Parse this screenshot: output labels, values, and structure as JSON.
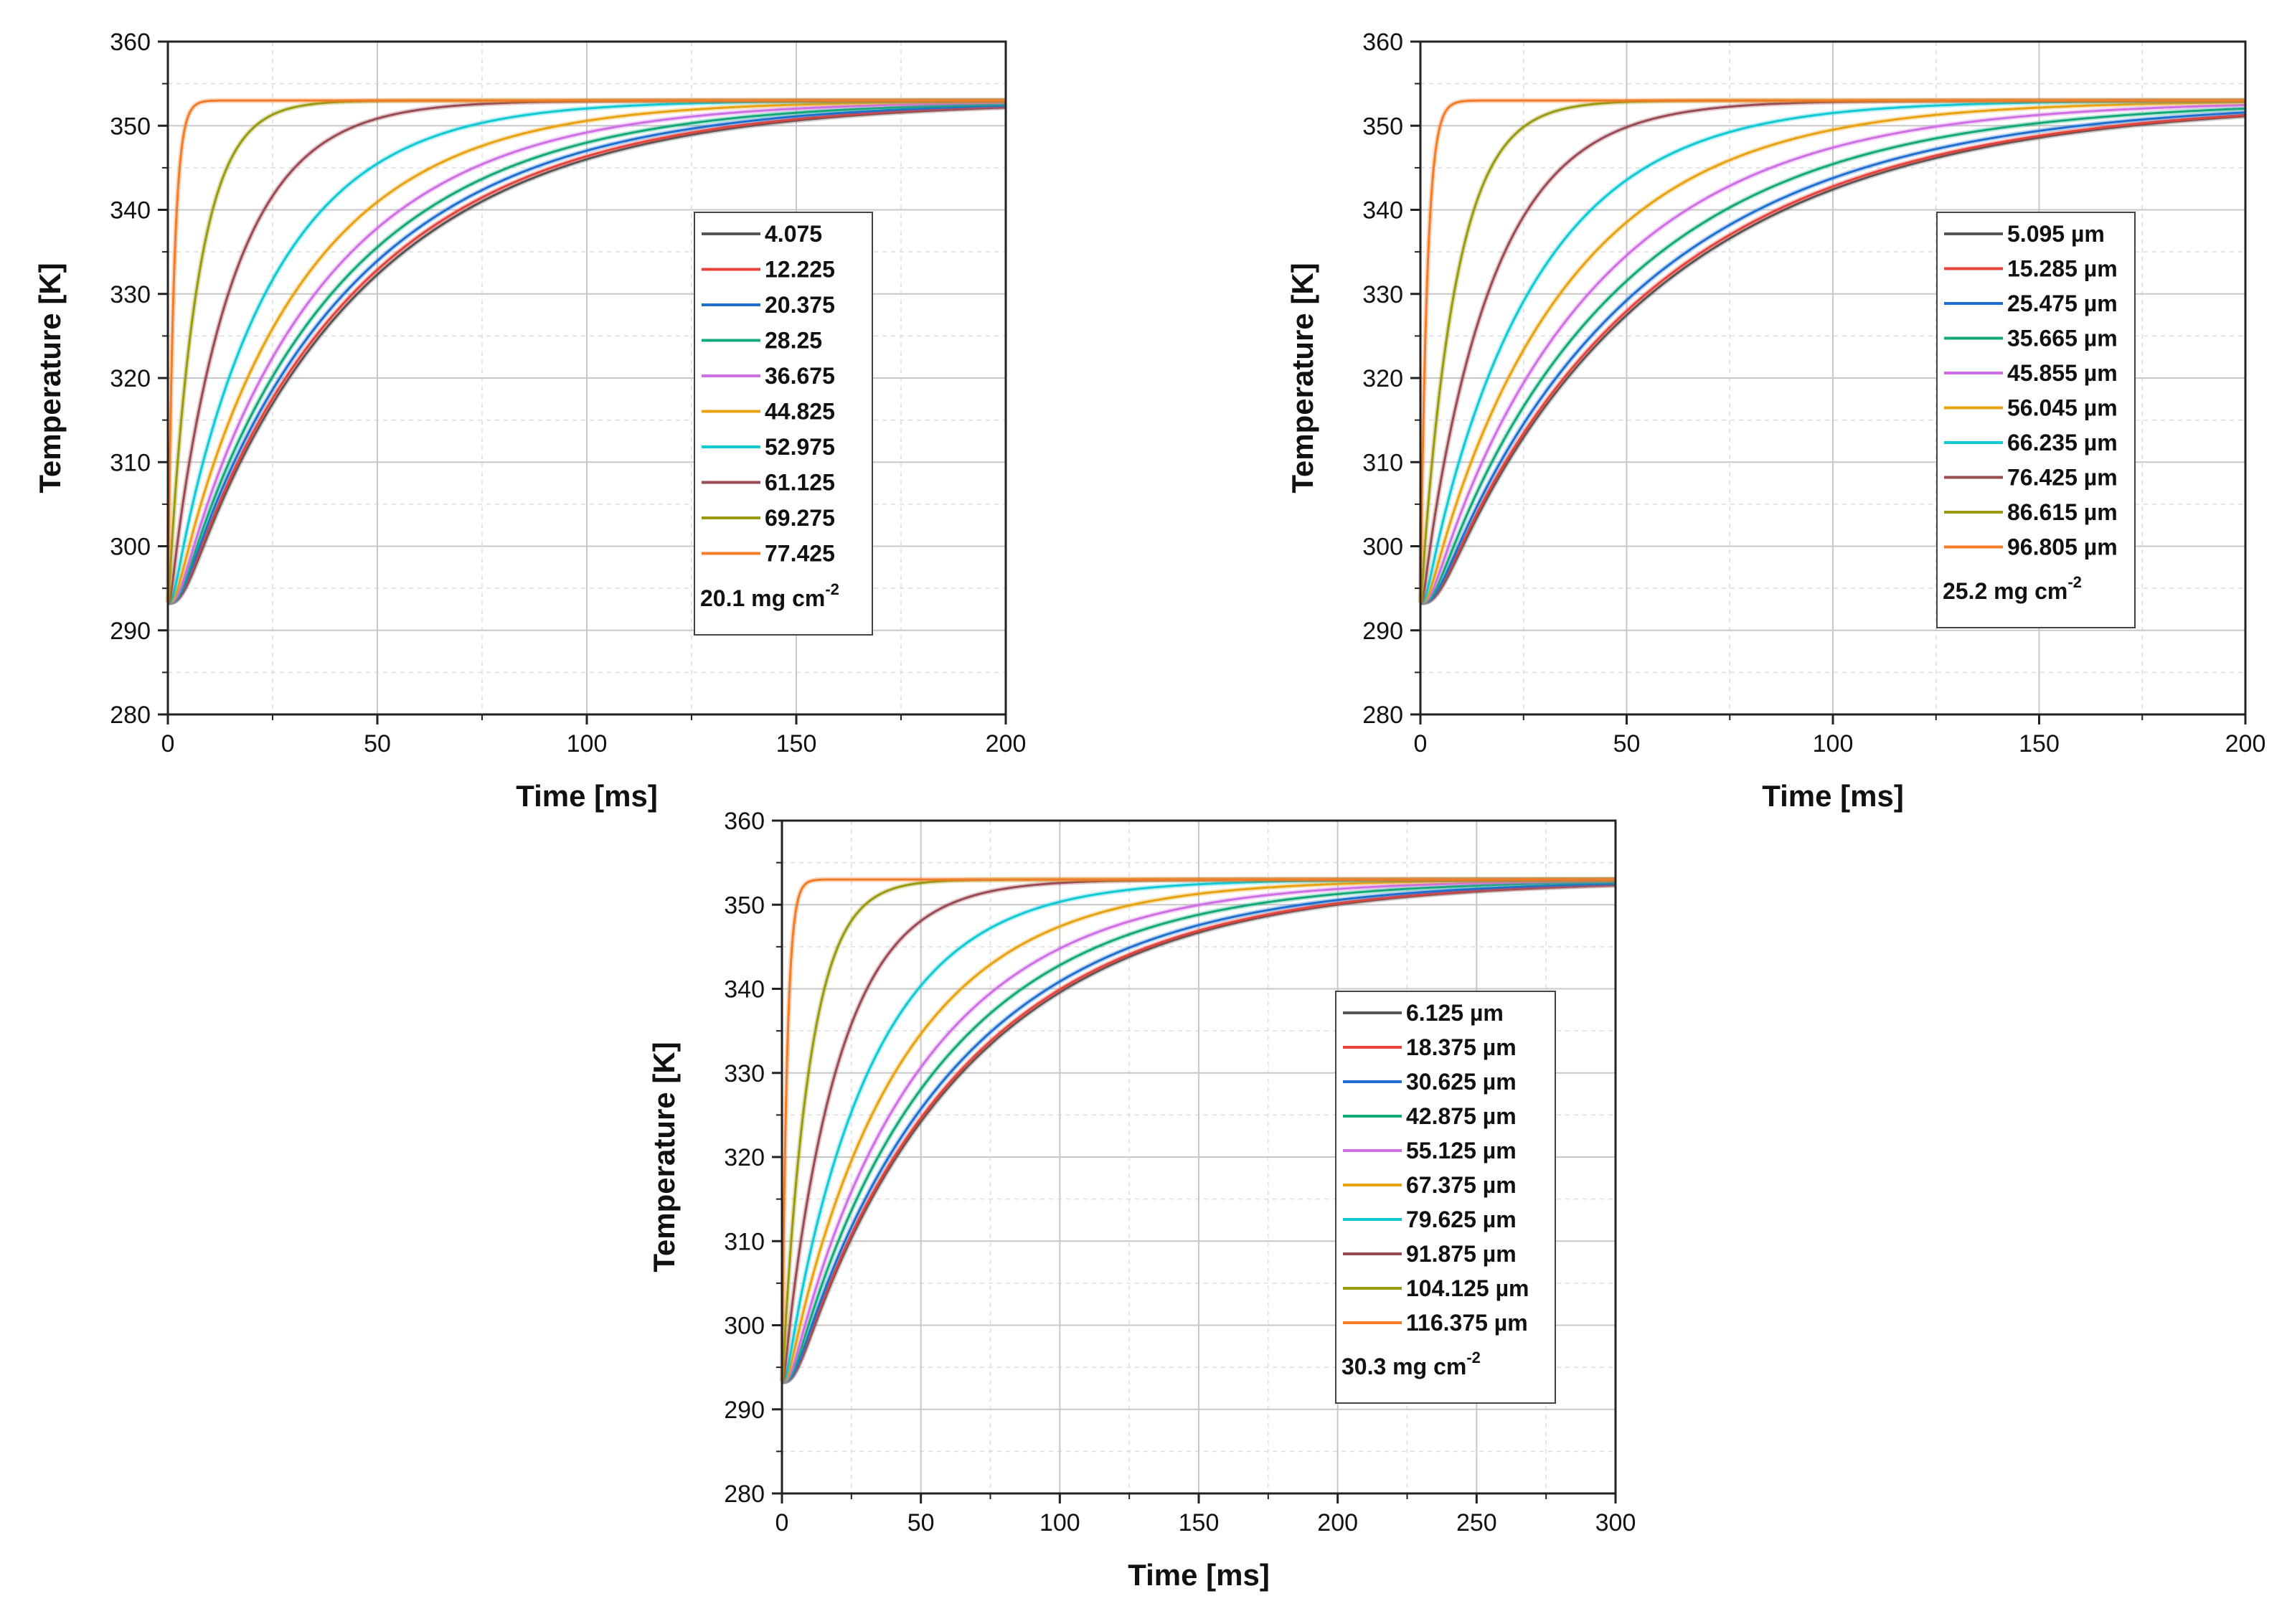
{
  "chart_data": [
    {
      "type": "line",
      "title": "",
      "xlabel": "Time [ms]",
      "ylabel": "Temperature [K]",
      "xlim": [
        0,
        200
      ],
      "ylim": [
        280,
        360
      ],
      "xticks": [
        0,
        50,
        100,
        150,
        200
      ],
      "yticks": [
        280,
        290,
        300,
        310,
        320,
        330,
        340,
        350,
        360
      ],
      "grid": true,
      "legend_position": "center-right",
      "legend_note": {
        "text": "20.1 mg cm",
        "sup": "-2"
      },
      "curve_model": {
        "T0": 293.3,
        "Tmax": 353.0
      },
      "series": [
        {
          "name": "4.075",
          "color": "#555555",
          "tau": 46.0,
          "delay": 6.0
        },
        {
          "name": "12.225",
          "color": "#e8433a",
          "tau": 45.0,
          "delay": 5.5
        },
        {
          "name": "20.375",
          "color": "#1f6fd1",
          "tau": 43.0,
          "delay": 5.0
        },
        {
          "name": "28.25",
          "color": "#13a87a",
          "tau": 40.0,
          "delay": 4.5
        },
        {
          "name": "36.675",
          "color": "#cf6fe6",
          "tau": 36.0,
          "delay": 4.0
        },
        {
          "name": "44.825",
          "color": "#e8a210",
          "tau": 31.0,
          "delay": 3.0
        },
        {
          "name": "52.975",
          "color": "#10c9d3",
          "tau": 24.0,
          "delay": 2.0
        },
        {
          "name": "61.125",
          "color": "#9a4a52",
          "tau": 15.0,
          "delay": 1.0
        },
        {
          "name": "69.275",
          "color": "#9a9a10",
          "tau": 7.0,
          "delay": 0.3
        },
        {
          "name": "77.425",
          "color": "#f47b28",
          "tau": 1.4,
          "delay": 0.0
        }
      ]
    },
    {
      "type": "line",
      "title": "",
      "xlabel": "Time [ms]",
      "ylabel": "Temperature [K]",
      "xlim": [
        0,
        200
      ],
      "ylim": [
        280,
        360
      ],
      "xticks": [
        0,
        50,
        100,
        150,
        200
      ],
      "yticks": [
        280,
        290,
        300,
        310,
        320,
        330,
        340,
        350,
        360
      ],
      "grid": true,
      "legend_position": "top-right",
      "legend_note": {
        "text": "25.2 mg cm",
        "sup": "-2"
      },
      "curve_model": {
        "T0": 293.3,
        "Tmax": 353.0
      },
      "series": [
        {
          "name": "5.095 µm",
          "color": "#555555",
          "tau": 57.0,
          "delay": 7.0
        },
        {
          "name": "15.285 µm",
          "color": "#e8433a",
          "tau": 56.0,
          "delay": 6.5
        },
        {
          "name": "25.475 µm",
          "color": "#1f6fd1",
          "tau": 53.0,
          "delay": 6.0
        },
        {
          "name": "35.665 µm",
          "color": "#13a87a",
          "tau": 48.0,
          "delay": 5.0
        },
        {
          "name": "45.855 µm",
          "color": "#cf6fe6",
          "tau": 42.0,
          "delay": 4.0
        },
        {
          "name": "56.045 µm",
          "color": "#e8a210",
          "tau": 35.0,
          "delay": 3.0
        },
        {
          "name": "66.235 µm",
          "color": "#10c9d3",
          "tau": 27.0,
          "delay": 2.0
        },
        {
          "name": "76.425 µm",
          "color": "#9a4a52",
          "tau": 17.0,
          "delay": 1.0
        },
        {
          "name": "86.615 µm",
          "color": "#9a9a10",
          "tau": 8.5,
          "delay": 0.3
        },
        {
          "name": "96.805 µm",
          "color": "#f47b28",
          "tau": 1.6,
          "delay": 0.0
        }
      ]
    },
    {
      "type": "line",
      "title": "",
      "xlabel": "Time [ms]",
      "ylabel": "Temperature [K]",
      "xlim": [
        0,
        300
      ],
      "ylim": [
        280,
        360
      ],
      "xticks": [
        0,
        50,
        100,
        150,
        200,
        250,
        300
      ],
      "yticks": [
        280,
        290,
        300,
        310,
        320,
        330,
        340,
        350,
        360
      ],
      "grid": true,
      "legend_position": "center-right",
      "legend_note": {
        "text": "30.3 mg cm",
        "sup": "-2"
      },
      "curve_model": {
        "T0": 293.3,
        "Tmax": 353.0
      },
      "series": [
        {
          "name": "6.125 µm",
          "color": "#555555",
          "tau": 66.0,
          "delay": 8.0
        },
        {
          "name": "18.375 µm",
          "color": "#e8433a",
          "tau": 65.0,
          "delay": 7.5
        },
        {
          "name": "30.625 µm",
          "color": "#1f6fd1",
          "tau": 62.0,
          "delay": 7.0
        },
        {
          "name": "42.875 µm",
          "color": "#13a87a",
          "tau": 56.0,
          "delay": 6.0
        },
        {
          "name": "55.125 µm",
          "color": "#cf6fe6",
          "tau": 50.0,
          "delay": 5.0
        },
        {
          "name": "67.375 µm",
          "color": "#e8a210",
          "tau": 42.0,
          "delay": 3.5
        },
        {
          "name": "79.625 µm",
          "color": "#10c9d3",
          "tau": 32.0,
          "delay": 2.5
        },
        {
          "name": "91.875 µm",
          "color": "#9a4a52",
          "tau": 20.0,
          "delay": 1.2
        },
        {
          "name": "104.125 µm",
          "color": "#9a9a10",
          "tau": 10.0,
          "delay": 0.4
        },
        {
          "name": "116.375 µm",
          "color": "#f47b28",
          "tau": 1.8,
          "delay": 0.0
        }
      ]
    }
  ]
}
